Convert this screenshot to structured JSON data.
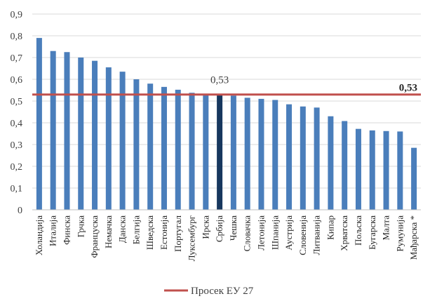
{
  "chart_data": {
    "type": "bar",
    "title": "",
    "xlabel": "",
    "ylabel": "",
    "ylim": [
      0,
      0.9
    ],
    "yticks": [
      "0",
      "0,1",
      "0,2",
      "0,3",
      "0,4",
      "0,5",
      "0,6",
      "0,7",
      "0,8",
      "0,9"
    ],
    "grid": true,
    "categories": [
      "Холандија",
      "Италија",
      "Финска",
      "Грчка",
      "Француска",
      "Немачка",
      "Данска",
      "Белгија",
      "Шведска",
      "Естонија",
      "Португал",
      "Луксембург",
      "Ирска",
      "Србија",
      "Чешка",
      "Словачка",
      "Летонија",
      "Шпанија",
      "Аустрија",
      "Словенија",
      "Литванија",
      "Кипар",
      "Хрватска",
      "Пољска",
      "Бугарска",
      "Малта",
      "Румунија",
      "Мађарска *"
    ],
    "values": [
      0.79,
      0.73,
      0.725,
      0.7,
      0.685,
      0.655,
      0.635,
      0.6,
      0.58,
      0.565,
      0.552,
      0.538,
      0.53,
      0.53,
      0.525,
      0.515,
      0.51,
      0.505,
      0.485,
      0.475,
      0.47,
      0.43,
      0.408,
      0.372,
      0.365,
      0.362,
      0.36,
      0.285
    ],
    "highlight": "Србија",
    "highlight_label": "0,53",
    "average": {
      "name": "Просек ЕУ 27",
      "value": 0.53,
      "label": "0,53"
    },
    "legend": {
      "position": "bottom",
      "entries": [
        "Просек ЕУ 27"
      ]
    },
    "colors": {
      "bar": "#4a7ebb",
      "highlight": "#17375e",
      "average": "#c0504d"
    }
  }
}
